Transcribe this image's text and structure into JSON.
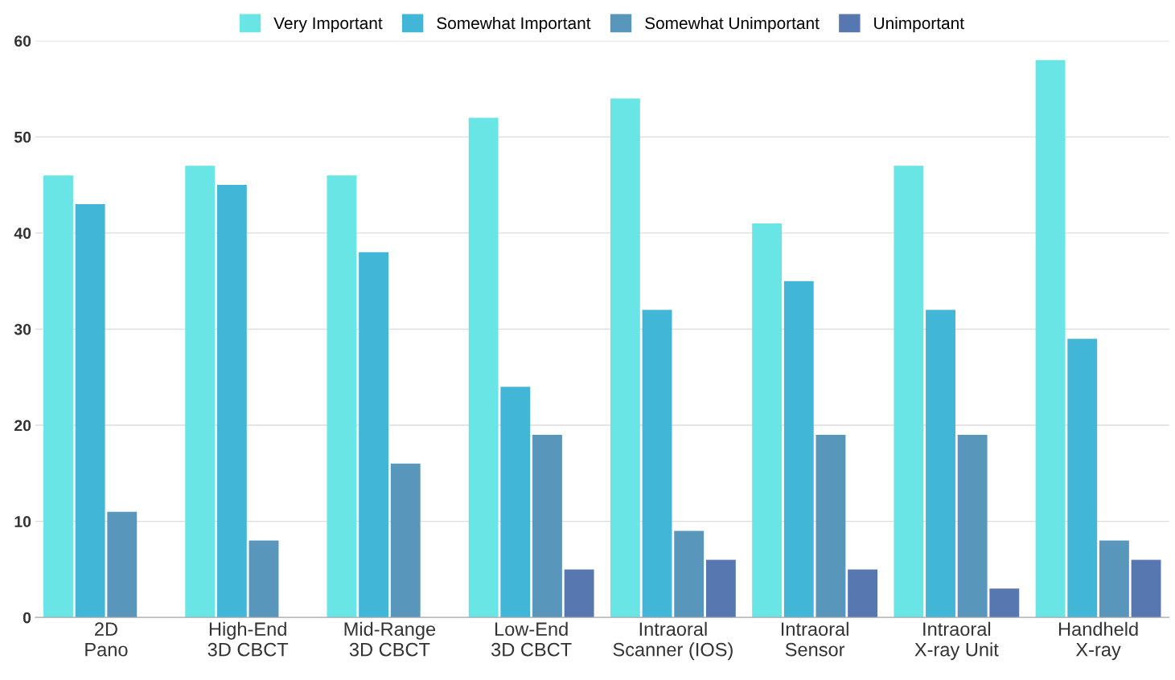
{
  "chart_data": {
    "type": "bar",
    "categories": [
      "2D\nPano",
      "High-End\n3D CBCT",
      "Mid-Range\n3D CBCT",
      "Low-End\n3D CBCT",
      "Intraoral\nScanner (IOS)",
      "Intraoral\nSensor",
      "Intraoral\nX-ray Unit",
      "Handheld\nX-ray"
    ],
    "series": [
      {
        "name": "Very Important",
        "color": "#6ae5e6",
        "values": [
          46,
          47,
          46,
          52,
          54,
          41,
          47,
          58
        ]
      },
      {
        "name": "Somewhat Important",
        "color": "#42b6d6",
        "values": [
          43,
          45,
          38,
          24,
          32,
          35,
          32,
          29
        ]
      },
      {
        "name": "Somewhat Unimportant",
        "color": "#5996bb",
        "values": [
          11,
          8,
          16,
          19,
          9,
          19,
          19,
          8
        ]
      },
      {
        "name": "Unimportant",
        "color": "#5677b0",
        "values": [
          0,
          0,
          0,
          5,
          6,
          5,
          3,
          6
        ]
      }
    ],
    "ylim": [
      0,
      60
    ],
    "yticks": [
      0,
      10,
      20,
      30,
      40,
      50,
      60
    ],
    "grid": "y",
    "legend": "top"
  }
}
